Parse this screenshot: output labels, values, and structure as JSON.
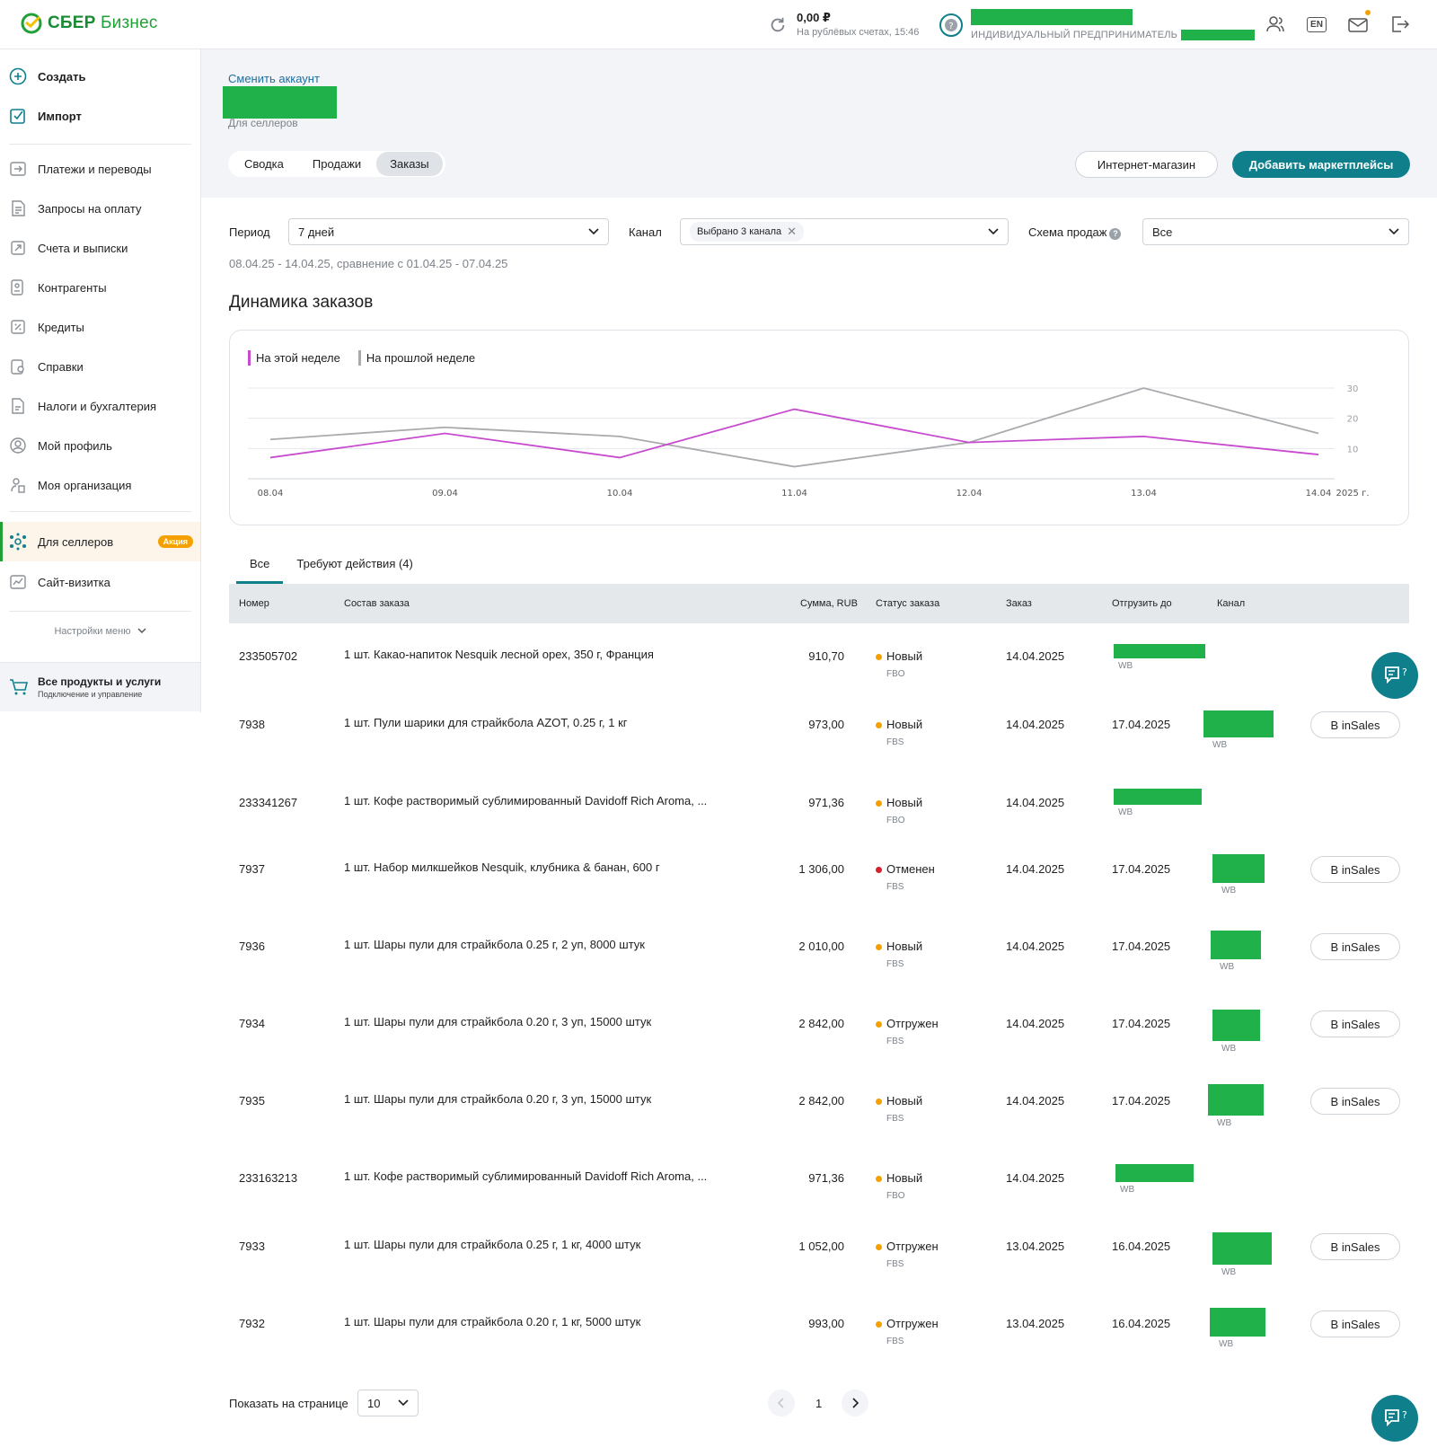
{
  "colors": {
    "brand": "#21a038",
    "accent": "#107f8c",
    "this_week": "#c74bce",
    "last_week": "#a8aaad",
    "status_new": "#f4a100",
    "status_cancelled": "#d4212d",
    "redacted": "#21b14b"
  },
  "header": {
    "logo_text_1": "СБЕР",
    "logo_text_2": "Бизнес",
    "balance_amount": "0,00 ₽",
    "balance_sub": "На рублёвых счетах, 15:46",
    "org_type": "ИНДИВИДУАЛЬНЫЙ ПРЕДПРИНИМАТЕЛЬ",
    "lang": "EN",
    "icons": [
      "refresh-icon",
      "users-icon",
      "lang-icon",
      "notifications-icon",
      "logout-icon"
    ]
  },
  "sidebar": {
    "items": [
      {
        "label": "Создать",
        "icon": "plus-circle-icon"
      },
      {
        "label": "Импорт",
        "icon": "import-icon"
      },
      {
        "label": "Платежи и переводы",
        "icon": "payments-icon"
      },
      {
        "label": "Запросы на оплату",
        "icon": "payment-request-icon"
      },
      {
        "label": "Счета и выписки",
        "icon": "accounts-icon"
      },
      {
        "label": "Контрагенты",
        "icon": "counterparties-icon"
      },
      {
        "label": "Кредиты",
        "icon": "credits-icon"
      },
      {
        "label": "Справки",
        "icon": "certificates-icon"
      },
      {
        "label": "Налоги и бухгалтерия",
        "icon": "taxes-icon"
      },
      {
        "label": "Мой профиль",
        "icon": "profile-icon"
      },
      {
        "label": "Моя организация",
        "icon": "organization-icon"
      },
      {
        "label": "Для селлеров",
        "icon": "sellers-icon",
        "badge": "Акция"
      },
      {
        "label": "Сайт-визитка",
        "icon": "website-icon"
      }
    ],
    "menu_settings": "Настройки меню",
    "all_products_title": "Все продукты и услуги",
    "all_products_sub": "Подключение и управление"
  },
  "page": {
    "switch_account": "Сменить аккаунт",
    "account_sub": "Для селлеров",
    "tabs": [
      "Сводка",
      "Продажи",
      "Заказы"
    ],
    "active_tab": "Заказы",
    "btn_shop": "Интернет-магазин",
    "btn_add": "Добавить маркетплейсы"
  },
  "filters": {
    "period_label": "Период",
    "period_value": "7 дней",
    "channel_label": "Канал",
    "channel_chip": "Выбрано 3 канала",
    "scheme_label": "Схема продаж",
    "scheme_value": "Все",
    "period_text": "08.04.25 - 14.04.25, сравнение с 01.04.25 - 07.04.25"
  },
  "chart_title": "Динамика заказов",
  "chart_data": {
    "type": "line",
    "x": [
      "08.04",
      "09.04",
      "10.04",
      "11.04",
      "12.04",
      "13.04",
      "14.04"
    ],
    "x_suffix": "2025 г.",
    "y_ticks": [
      10,
      20,
      30
    ],
    "ylim": [
      0,
      30
    ],
    "grid": true,
    "legend_position": "top-left",
    "series": [
      {
        "name": "На этой неделе",
        "values": [
          7,
          15,
          7,
          23,
          12,
          14,
          8
        ]
      },
      {
        "name": "На прошлой неделе",
        "values": [
          13,
          17,
          14,
          4,
          12,
          30,
          15
        ]
      }
    ]
  },
  "orders": {
    "tabs": [
      "Все",
      "Требуют действия (4)"
    ],
    "columns": [
      "Номер",
      "Состав заказа",
      "Сумма, RUB",
      "Статус заказа",
      "Заказ",
      "Отгрузить до",
      "Канал"
    ],
    "channel_label": "WB",
    "insales_label": "В inSales",
    "rows": [
      {
        "num": "233505702",
        "item": "1 шт. Какао-напиток Nesquik лесной орех, 350 г, Франция",
        "sum": "910,70",
        "status": "Новый",
        "scheme": "FBO",
        "date": "14.04.2025",
        "ship": "",
        "insales": false,
        "st": "new"
      },
      {
        "num": "7938",
        "item": "1 шт. Пули шарики для страйкбола AZOT, 0.25 г, 1 кг",
        "sum": "973,00",
        "status": "Новый",
        "scheme": "FBS",
        "date": "14.04.2025",
        "ship": "17.04.2025",
        "insales": true,
        "st": "new"
      },
      {
        "num": "233341267",
        "item": "1 шт. Кофе растворимый сублимированный Davidoff Rich Aroma, ...",
        "sum": "971,36",
        "status": "Новый",
        "scheme": "FBO",
        "date": "14.04.2025",
        "ship": "",
        "insales": false,
        "st": "new"
      },
      {
        "num": "7937",
        "item": "1 шт. Набор милкшейков Nesquik, клубника & банан, 600 г",
        "sum": "1 306,00",
        "status": "Отменен",
        "scheme": "FBS",
        "date": "14.04.2025",
        "ship": "17.04.2025",
        "insales": true,
        "st": "cancelled"
      },
      {
        "num": "7936",
        "item": "1 шт. Шары пули для страйкбола 0.25 г, 2 уп, 8000 штук",
        "sum": "2 010,00",
        "status": "Новый",
        "scheme": "FBS",
        "date": "14.04.2025",
        "ship": "17.04.2025",
        "insales": true,
        "st": "new"
      },
      {
        "num": "7934",
        "item": "1 шт. Шары пули для страйкбола 0.20 г, 3 уп, 15000 штук",
        "sum": "2 842,00",
        "status": "Отгружен",
        "scheme": "FBS",
        "date": "14.04.2025",
        "ship": "17.04.2025",
        "insales": true,
        "st": "new"
      },
      {
        "num": "7935",
        "item": "1 шт. Шары пули для страйкбола 0.20 г, 3 уп, 15000 штук",
        "sum": "2 842,00",
        "status": "Новый",
        "scheme": "FBS",
        "date": "14.04.2025",
        "ship": "17.04.2025",
        "insales": true,
        "st": "new"
      },
      {
        "num": "233163213",
        "item": "1 шт. Кофе растворимый сублимированный Davidoff Rich Aroma, ...",
        "sum": "971,36",
        "status": "Новый",
        "scheme": "FBO",
        "date": "14.04.2025",
        "ship": "",
        "insales": false,
        "st": "new"
      },
      {
        "num": "7933",
        "item": "1 шт. Шары пули для страйкбола 0.25 г, 1 кг, 4000 штук",
        "sum": "1 052,00",
        "status": "Отгружен",
        "scheme": "FBS",
        "date": "13.04.2025",
        "ship": "16.04.2025",
        "insales": true,
        "st": "new"
      },
      {
        "num": "7932",
        "item": "1 шт. Шары пули для страйкбола 0.20 г, 1 кг, 5000 штук",
        "sum": "993,00",
        "status": "Отгружен",
        "scheme": "FBS",
        "date": "13.04.2025",
        "ship": "16.04.2025",
        "insales": true,
        "st": "new"
      }
    ]
  },
  "pagination": {
    "label": "Показать на странице",
    "per_page": "10",
    "page": "1"
  }
}
